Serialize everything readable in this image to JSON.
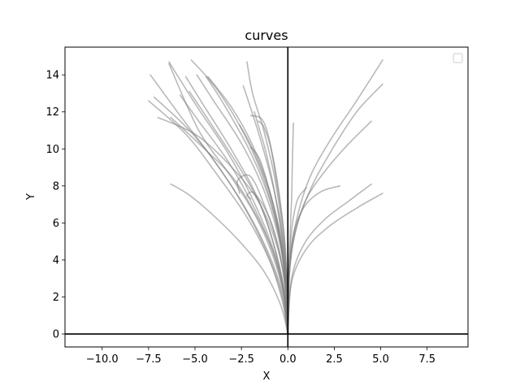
{
  "chart_data": {
    "type": "line",
    "title": "curves",
    "xlabel": "X",
    "ylabel": "Y",
    "xlim": [
      -12,
      9.7
    ],
    "ylim": [
      -0.7,
      15.5
    ],
    "x_ticks": [
      -10.0,
      -7.5,
      -5.0,
      -2.5,
      0.0,
      2.5,
      5.0,
      7.5
    ],
    "x_tick_labels": [
      "−10.0",
      "−7.5",
      "−5.0",
      "−2.5",
      "0.0",
      "2.5",
      "5.0",
      "7.5"
    ],
    "y_ticks": [
      0,
      2,
      4,
      6,
      8,
      10,
      12,
      14
    ],
    "y_tick_labels": [
      "0",
      "2",
      "4",
      "6",
      "8",
      "10",
      "12",
      "14"
    ],
    "legend": "upper right (empty)",
    "grid": false,
    "reference_lines": {
      "x": 0,
      "y": 0
    },
    "series_color": "#808080",
    "series": [
      {
        "x": [
          0,
          -0.2,
          -0.8,
          -1.8,
          -3.2,
          -4.8,
          -6.4
        ],
        "y": [
          0,
          2.0,
          4.2,
          6.5,
          8.7,
          11.0,
          14.6
        ]
      },
      {
        "x": [
          0,
          -0.3,
          -1.0,
          -2.2,
          -3.8,
          -5.5,
          -7.5
        ],
        "y": [
          0,
          1.8,
          4.0,
          6.3,
          8.6,
          10.8,
          12.6
        ]
      },
      {
        "x": [
          0,
          -0.3,
          -1.1,
          -2.4,
          -4.0,
          -5.8,
          -7.4
        ],
        "y": [
          0,
          2.2,
          4.5,
          7.0,
          9.4,
          11.8,
          14.0
        ]
      },
      {
        "x": [
          0,
          -0.2,
          -0.9,
          -2.0,
          -3.3,
          -4.9,
          -6.4
        ],
        "y": [
          0,
          2.4,
          4.9,
          7.5,
          9.9,
          12.3,
          14.7
        ]
      },
      {
        "x": [
          0,
          -0.4,
          -1.3,
          -2.6,
          -4.0,
          -5.3,
          -6.3
        ],
        "y": [
          0,
          1.6,
          3.4,
          5.0,
          6.4,
          7.5,
          8.1
        ]
      },
      {
        "x": [
          0,
          -0.2,
          -0.8,
          -1.7,
          -3.0,
          -4.5,
          -5.5
        ],
        "y": [
          0,
          2.4,
          5.0,
          7.5,
          9.9,
          12.3,
          13.9
        ]
      },
      {
        "x": [
          0,
          -0.1,
          -0.5,
          -1.3,
          -2.5,
          -4.0,
          -4.9
        ],
        "y": [
          0,
          2.6,
          5.2,
          7.8,
          10.3,
          12.6,
          14.0
        ]
      },
      {
        "x": [
          0,
          -0.1,
          -0.4,
          -1.1,
          -2.1,
          -3.5,
          -4.4
        ],
        "y": [
          0,
          2.5,
          5.0,
          7.6,
          10.0,
          12.5,
          13.9
        ]
      },
      {
        "x": [
          0,
          -0.2,
          -0.7,
          -1.5,
          -2.8,
          -4.3,
          -5.3
        ],
        "y": [
          0,
          2.2,
          4.6,
          7.0,
          9.3,
          11.6,
          13.1
        ]
      },
      {
        "x": [
          0,
          -0.1,
          -0.5,
          -1.2,
          -2.3,
          -3.8,
          -5.2
        ],
        "y": [
          0,
          2.7,
          5.4,
          8.1,
          10.7,
          13.2,
          14.8
        ]
      },
      {
        "x": [
          0,
          -0.2,
          -0.7,
          -1.7,
          -3.0,
          -4.7,
          -6.3
        ],
        "y": [
          0,
          2.0,
          4.2,
          6.4,
          8.5,
          10.2,
          11.7
        ]
      },
      {
        "x": [
          0,
          -0.1,
          -0.6,
          -1.6,
          -3.2,
          -5.0,
          -7.0
        ],
        "y": [
          0,
          2.3,
          4.8,
          7.2,
          9.2,
          10.8,
          11.7
        ]
      },
      {
        "x": [
          0,
          -0.05,
          -0.3,
          -0.8,
          -1.5,
          -2.1,
          -2.4
        ],
        "y": [
          0,
          2.5,
          5.3,
          8.0,
          10.6,
          12.5,
          13.4
        ]
      },
      {
        "x": [
          0,
          -0.05,
          -0.2,
          -0.6,
          -1.0,
          -1.4,
          -2.0
        ],
        "y": [
          0,
          2.7,
          5.4,
          8.2,
          10.5,
          11.6,
          11.8
        ]
      },
      {
        "x": [
          0,
          -0.05,
          -0.2,
          -0.5,
          -0.9,
          -1.3,
          -1.6
        ],
        "y": [
          0,
          2.6,
          5.2,
          7.8,
          10.0,
          11.2,
          11.5
        ]
      },
      {
        "x": [
          0,
          -0.1,
          -0.5,
          -1.2,
          -2.0,
          -2.7,
          -2.6
        ],
        "y": [
          0,
          2.3,
          4.6,
          6.8,
          8.5,
          8.3,
          7.6
        ]
      },
      {
        "x": [
          0,
          -0.05,
          -0.3,
          -0.7,
          -1.3,
          -1.9,
          -2.2
        ],
        "y": [
          0,
          2.8,
          5.6,
          8.4,
          11.0,
          13.0,
          14.7
        ]
      },
      {
        "x": [
          0,
          -0.1,
          -0.4,
          -1.0,
          -1.9,
          -3.0,
          -4.3
        ],
        "y": [
          0,
          2.6,
          5.2,
          7.8,
          10.2,
          12.2,
          13.9
        ]
      },
      {
        "x": [
          0,
          -0.1,
          -0.4,
          -0.9,
          -1.5,
          -2.0
        ],
        "y": [
          0,
          2.4,
          5.0,
          7.4,
          9.4,
          10.1
        ]
      },
      {
        "x": [
          0,
          -0.1,
          -0.4,
          -1.0,
          -1.8,
          -2.2,
          -2.0
        ],
        "y": [
          0,
          2.0,
          4.2,
          6.3,
          7.6,
          7.5,
          7.3
        ]
      },
      {
        "x": [
          0,
          -0.2,
          -0.8,
          -1.8,
          -3.2,
          -4.8,
          -5.8
        ],
        "y": [
          0,
          2.1,
          4.4,
          6.8,
          9.3,
          11.5,
          12.9
        ]
      },
      {
        "x": [
          0,
          -0.3,
          -1.0,
          -2.1,
          -3.5,
          -5.2,
          -7.2
        ],
        "y": [
          0,
          2.0,
          4.1,
          6.4,
          8.7,
          10.9,
          12.8
        ]
      },
      {
        "x": [
          0,
          -0.1,
          -0.3,
          -0.7,
          -1.2,
          -1.6,
          -1.8
        ],
        "y": [
          0,
          2.4,
          5.0,
          7.6,
          9.9,
          11.3,
          12.0
        ]
      },
      {
        "x": [
          0,
          -0.05,
          -0.3,
          -0.9,
          -1.8,
          -2.6
        ],
        "y": [
          0,
          2.3,
          4.8,
          7.4,
          9.8,
          11.3
        ]
      },
      {
        "x": [
          0,
          0.05,
          0.1,
          0.2,
          0.25,
          0.3
        ],
        "y": [
          0,
          2.4,
          4.9,
          7.3,
          9.6,
          11.4
        ]
      },
      {
        "x": [
          0,
          0.1,
          0.4,
          1.0,
          2.0,
          3.2,
          4.5
        ],
        "y": [
          0,
          3.4,
          5.5,
          7.3,
          8.8,
          10.2,
          11.5
        ]
      },
      {
        "x": [
          0,
          0.1,
          0.5,
          1.3,
          2.4,
          3.7,
          5.1
        ],
        "y": [
          0,
          3.6,
          5.9,
          8.0,
          10.0,
          12.0,
          13.5
        ]
      },
      {
        "x": [
          0,
          0.1,
          0.5,
          1.2,
          2.3,
          3.7,
          5.1
        ],
        "y": [
          0,
          3.8,
          6.3,
          8.5,
          10.5,
          12.6,
          14.8
        ]
      },
      {
        "x": [
          0,
          0.2,
          0.9,
          2.0,
          3.3,
          4.5
        ],
        "y": [
          0,
          3.0,
          4.9,
          6.2,
          7.2,
          8.1
        ]
      },
      {
        "x": [
          0,
          0.2,
          1.0,
          2.2,
          3.7,
          5.1
        ],
        "y": [
          0,
          2.8,
          4.6,
          5.8,
          6.8,
          7.6
        ]
      },
      {
        "x": [
          0,
          0.05,
          0.3,
          0.9,
          1.8,
          2.8
        ],
        "y": [
          0,
          3.0,
          5.4,
          6.9,
          7.7,
          8.0
        ]
      },
      {
        "x": [
          0,
          0.05,
          0.2,
          0.5,
          0.9,
          1.0
        ],
        "y": [
          0,
          3.2,
          5.6,
          7.2,
          7.8,
          7.9
        ]
      }
    ]
  }
}
